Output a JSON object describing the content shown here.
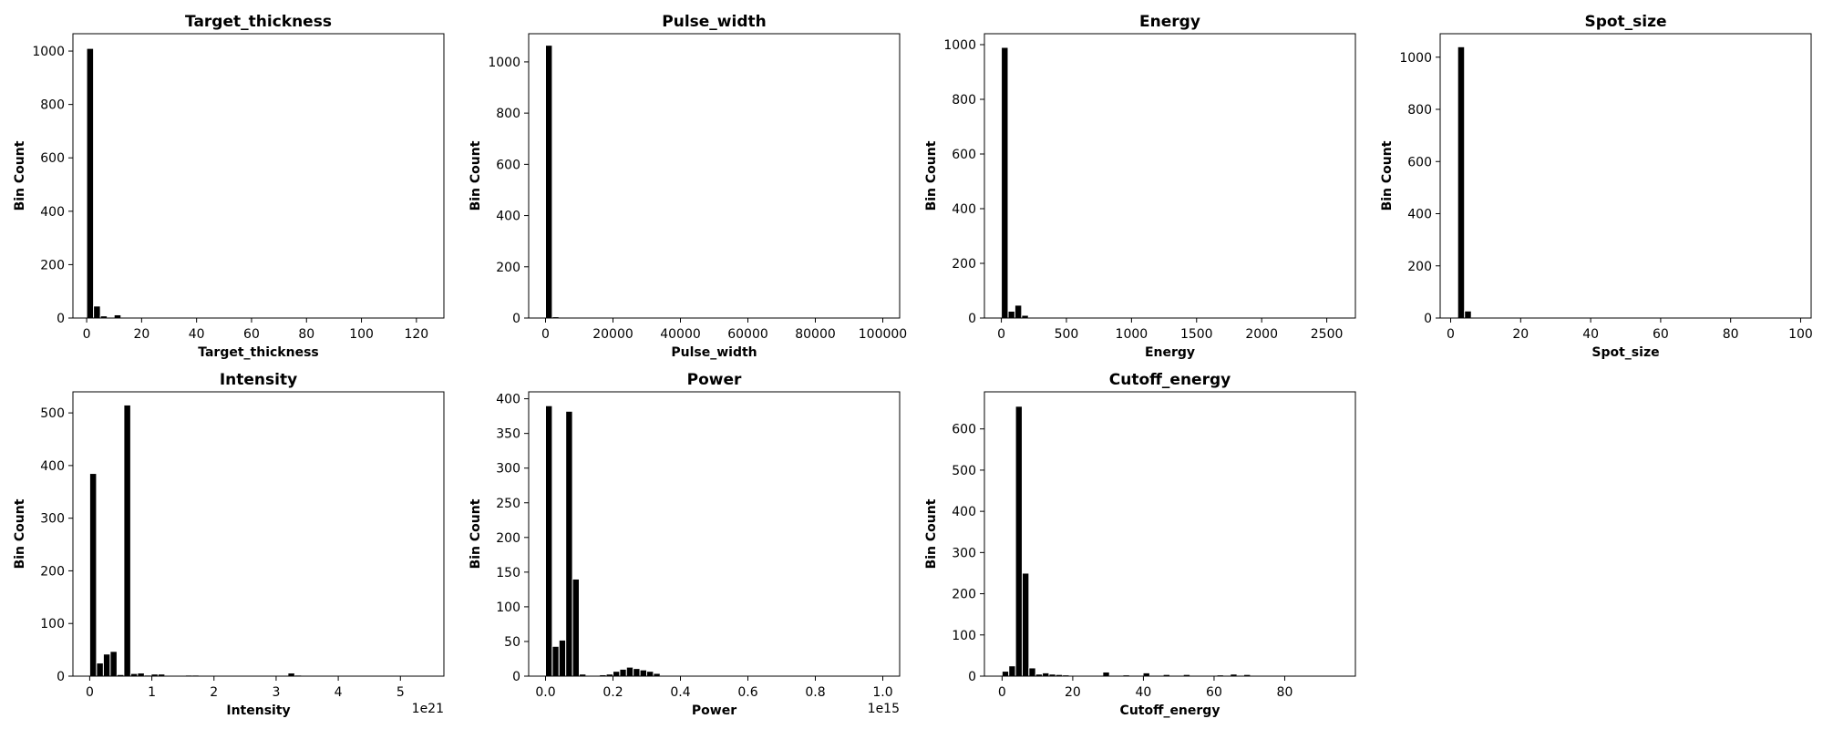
{
  "chart_data": [
    {
      "type": "bar",
      "title": "Target_thickness",
      "xlabel": "Target_thickness",
      "ylabel": "Bin Count",
      "xlim": [
        -5,
        130
      ],
      "ylim": [
        0,
        1065
      ],
      "xticks": [
        0,
        20,
        40,
        60,
        80,
        100,
        120
      ],
      "xtick_labels": [
        "0",
        "20",
        "40",
        "60",
        "80",
        "100",
        "120"
      ],
      "yticks": [
        0,
        200,
        400,
        600,
        800,
        1000
      ],
      "ytick_labels": [
        "0",
        "200",
        "400",
        "600",
        "800",
        "1000"
      ],
      "offset_text": "",
      "bin_start": 0,
      "bin_width": 2.5,
      "values": [
        1010,
        45,
        8,
        3,
        12,
        2,
        1,
        0,
        0,
        0,
        0,
        0,
        0,
        0,
        0,
        0,
        0,
        0,
        0,
        0,
        0,
        0,
        0,
        0,
        0,
        0,
        0,
        0,
        0,
        0,
        0,
        0,
        0,
        0,
        0,
        0,
        0,
        0,
        0,
        0,
        0,
        0,
        0,
        0,
        0,
        0,
        0,
        0,
        0,
        1
      ]
    },
    {
      "type": "bar",
      "title": "Pulse_width",
      "xlabel": "Pulse_width",
      "ylabel": "Bin Count",
      "xlim": [
        -5000,
        105000
      ],
      "ylim": [
        0,
        1110
      ],
      "xticks": [
        0,
        20000,
        40000,
        60000,
        80000,
        100000
      ],
      "xtick_labels": [
        "0",
        "20000",
        "40000",
        "60000",
        "80000",
        "100000"
      ],
      "yticks": [
        0,
        200,
        400,
        600,
        800,
        1000
      ],
      "ytick_labels": [
        "0",
        "200",
        "400",
        "600",
        "800",
        "1000"
      ],
      "offset_text": "",
      "bin_start": 0,
      "bin_width": 2000,
      "values": [
        1065,
        5,
        1,
        0,
        0,
        0,
        0,
        0,
        0,
        0,
        0,
        0,
        0,
        0,
        0,
        0,
        0,
        0,
        0,
        0,
        0,
        0,
        0,
        0,
        0,
        0,
        0,
        0,
        0,
        0,
        0,
        0,
        0,
        0,
        0,
        0,
        0,
        0,
        0,
        0,
        0,
        0,
        0,
        0,
        0,
        0,
        0,
        0,
        0,
        1
      ]
    },
    {
      "type": "bar",
      "title": "Energy",
      "xlabel": "Energy",
      "ylabel": "Bin Count",
      "xlim": [
        -130,
        2720
      ],
      "ylim": [
        0,
        1040
      ],
      "xticks": [
        0,
        500,
        1000,
        1500,
        2000,
        2500
      ],
      "xtick_labels": [
        "0",
        "500",
        "1000",
        "1500",
        "2000",
        "2500"
      ],
      "yticks": [
        0,
        200,
        400,
        600,
        800,
        1000
      ],
      "ytick_labels": [
        "0",
        "200",
        "400",
        "600",
        "800",
        "1000"
      ],
      "offset_text": "",
      "bin_start": 0,
      "bin_width": 52,
      "values": [
        990,
        25,
        47,
        10,
        2,
        1,
        1,
        0,
        0,
        0,
        0,
        0,
        0,
        0,
        0,
        0,
        0,
        0,
        0,
        0,
        0,
        0,
        0,
        0,
        0,
        0,
        0,
        0,
        0,
        0,
        0,
        0,
        0,
        0,
        0,
        0,
        0,
        0,
        0,
        0,
        0,
        0,
        0,
        0,
        0,
        0,
        0,
        0,
        0,
        1
      ]
    },
    {
      "type": "bar",
      "title": "Spot_size",
      "xlabel": "Spot_size",
      "ylabel": "Bin Count",
      "xlim": [
        -3,
        103
      ],
      "ylim": [
        0,
        1090
      ],
      "xticks": [
        0,
        20,
        40,
        60,
        80,
        100
      ],
      "xtick_labels": [
        "0",
        "20",
        "40",
        "60",
        "80",
        "100"
      ],
      "yticks": [
        0,
        200,
        400,
        600,
        800,
        1000
      ],
      "ytick_labels": [
        "0",
        "200",
        "400",
        "600",
        "800",
        "1000"
      ],
      "offset_text": "",
      "bin_start": 2,
      "bin_width": 1.96,
      "values": [
        1040,
        27,
        3,
        1,
        0,
        0,
        0,
        0,
        0,
        0,
        0,
        0,
        0,
        0,
        0,
        0,
        0,
        0,
        0,
        0,
        0,
        0,
        0,
        0,
        0,
        0,
        0,
        0,
        0,
        0,
        0,
        0,
        0,
        0,
        0,
        0,
        0,
        0,
        0,
        0,
        0,
        0,
        0,
        0,
        0,
        0,
        0,
        0,
        0,
        0
      ]
    },
    {
      "type": "bar",
      "title": "Intensity",
      "xlabel": "Intensity",
      "ylabel": "Bin Count",
      "xlim": [
        -0.27,
        5.7
      ],
      "ylim": [
        0,
        540
      ],
      "xticks": [
        0,
        1,
        2,
        3,
        4,
        5
      ],
      "xtick_labels": [
        "0",
        "1",
        "2",
        "3",
        "4",
        "5"
      ],
      "yticks": [
        0,
        100,
        200,
        300,
        400,
        500
      ],
      "ytick_labels": [
        "0",
        "100",
        "200",
        "300",
        "400",
        "500"
      ],
      "offset_text": "1e21",
      "bin_start": 0,
      "bin_width": 0.11,
      "values": [
        385,
        25,
        42,
        47,
        3,
        515,
        5,
        6,
        2,
        4,
        4,
        1,
        1,
        1,
        2,
        2,
        1,
        0,
        0,
        0,
        0,
        0,
        0,
        0,
        0,
        0,
        0,
        0,
        0,
        6,
        2,
        1,
        1,
        0,
        0,
        0,
        0,
        0,
        0,
        1,
        0,
        0,
        0,
        0,
        0,
        0,
        0,
        0,
        0,
        0
      ]
    },
    {
      "type": "bar",
      "title": "Power",
      "xlabel": "Power",
      "ylabel": "Bin Count",
      "xlim": [
        -0.05,
        1.05
      ],
      "ylim": [
        0,
        410
      ],
      "xticks": [
        0,
        0.2,
        0.4,
        0.6,
        0.8,
        1.0
      ],
      "xtick_labels": [
        "0.0",
        "0.2",
        "0.4",
        "0.6",
        "0.8",
        "1.0"
      ],
      "yticks": [
        0,
        50,
        100,
        150,
        200,
        250,
        300,
        350,
        400
      ],
      "ytick_labels": [
        "0",
        "50",
        "100",
        "150",
        "200",
        "250",
        "300",
        "350",
        "400"
      ],
      "offset_text": "1e15",
      "bin_start": 0,
      "bin_width": 0.02,
      "values": [
        390,
        43,
        52,
        382,
        140,
        3,
        1,
        0,
        2,
        3,
        7,
        10,
        13,
        11,
        9,
        7,
        4,
        1,
        1,
        0,
        0,
        0,
        0,
        0,
        0,
        0,
        0,
        0,
        0,
        0,
        0,
        0,
        0,
        0,
        0,
        0,
        0,
        0,
        0,
        0,
        0,
        0,
        0,
        0,
        0,
        0,
        0,
        0,
        0,
        1
      ]
    },
    {
      "type": "bar",
      "title": "Cutoff_energy",
      "xlabel": "Cutoff_energy",
      "ylabel": "Bin Count",
      "xlim": [
        -5,
        100
      ],
      "ylim": [
        0,
        690
      ],
      "xticks": [
        0,
        20,
        40,
        60,
        80
      ],
      "xtick_labels": [
        "0",
        "20",
        "40",
        "60",
        "80"
      ],
      "yticks": [
        0,
        100,
        200,
        300,
        400,
        500,
        600
      ],
      "ytick_labels": [
        "0",
        "100",
        "200",
        "300",
        "400",
        "500",
        "600"
      ],
      "offset_text": "",
      "bin_start": 0,
      "bin_width": 1.9,
      "values": [
        12,
        25,
        655,
        250,
        20,
        5,
        8,
        5,
        4,
        3,
        2,
        1,
        1,
        1,
        1,
        10,
        1,
        0,
        3,
        0,
        1,
        8,
        1,
        2,
        4,
        2,
        1,
        4,
        0,
        1,
        1,
        0,
        3,
        2,
        5,
        1,
        4,
        0,
        1,
        0,
        0,
        0,
        0,
        0,
        0,
        0,
        0,
        0,
        0,
        1
      ]
    }
  ]
}
